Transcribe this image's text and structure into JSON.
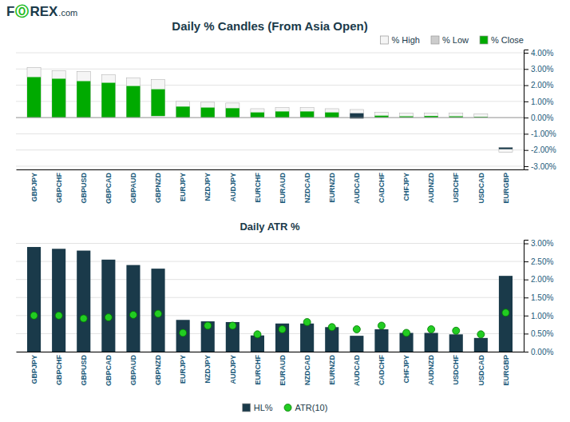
{
  "chart_data": [
    {
      "type": "candlestick",
      "title": "Daily % Candles (From Asia Open)",
      "annotations": [
        {
          "text": "F",
          "color": "#1a3a4a"
        },
        {
          "text": "Ⓞ",
          "color": "#22bb22"
        },
        {
          "text": "REX",
          "color": "#1a3a4a"
        },
        {
          "text": ".com",
          "color": "#1a3a4a"
        }
      ],
      "categories": [
        "GBPJPY",
        "GBPCHF",
        "GBPUSD",
        "GBPCAD",
        "GBPAUD",
        "GBPNZD",
        "EURJPY",
        "NZDJPY",
        "AUDJPY",
        "EURCHF",
        "EURAUD",
        "NZDCAD",
        "EURNZD",
        "AUDCAD",
        "CADCHF",
        "CHFJPY",
        "AUDNZD",
        "USDCHF",
        "USDCAD",
        "EURGBP"
      ],
      "series": [
        {
          "name": "% High",
          "color": "#f5f5f5",
          "values": [
            3.1,
            2.9,
            2.85,
            2.65,
            2.45,
            2.35,
            1.0,
            0.95,
            0.9,
            0.55,
            0.62,
            0.62,
            0.55,
            0.5,
            0.32,
            0.28,
            0.28,
            0.27,
            0.22,
            -1.85
          ]
        },
        {
          "name": "% Low",
          "color": "#cccccc",
          "values": [
            0.02,
            0.02,
            0.02,
            0.02,
            0.02,
            0.1,
            0.02,
            0.02,
            0.02,
            0.02,
            0.02,
            0.02,
            0.02,
            -0.05,
            0.02,
            0.02,
            0.02,
            0.02,
            0.02,
            -2.15
          ]
        },
        {
          "name": "% Close",
          "color": "#00aa00",
          "colors": [
            "#00aa00",
            "#00aa00",
            "#00aa00",
            "#00aa00",
            "#00aa00",
            "#00aa00",
            "#00aa00",
            "#00aa00",
            "#00aa00",
            "#00aa00",
            "#00aa00",
            "#00aa00",
            "#00aa00",
            "#1a3a4a",
            "#00aa00",
            "#00aa00",
            "#00aa00",
            "#00aa00",
            "#00aa00",
            "#1a3a4a"
          ],
          "values": [
            2.5,
            2.4,
            2.25,
            2.15,
            1.95,
            1.75,
            0.68,
            0.62,
            0.58,
            0.32,
            0.38,
            0.38,
            0.32,
            0.27,
            0.12,
            0.08,
            0.1,
            0.08,
            0.05,
            -1.95
          ]
        }
      ],
      "ylim": [
        -3.2,
        4.2
      ],
      "yticks": [
        {
          "value": -3.0,
          "label": "-3.00%"
        },
        {
          "value": -2.0,
          "label": "-2.00%"
        },
        {
          "value": -1.0,
          "label": "-1.00%"
        },
        {
          "value": 0.0,
          "label": "0.00%"
        },
        {
          "value": 1.0,
          "label": "1.00%"
        },
        {
          "value": 2.0,
          "label": "2.00%"
        },
        {
          "value": 3.0,
          "label": "3.00%"
        },
        {
          "value": 4.0,
          "label": "4.00%"
        }
      ],
      "grid": true,
      "legend": "upper right"
    },
    {
      "type": "bar",
      "title": "Daily ATR %",
      "categories": [
        "GBPJPY",
        "GBPCHF",
        "GBPUSD",
        "GBPCAD",
        "GBPAUD",
        "GBPNZD",
        "EURJPY",
        "NZDJPY",
        "AUDJPY",
        "EURCHF",
        "EURAUD",
        "NZDCAD",
        "EURNZD",
        "AUDCAD",
        "CADCHF",
        "CHFJPY",
        "AUDNZD",
        "USDCHF",
        "USDCAD",
        "EURGBP"
      ],
      "series": [
        {
          "name": "HL%",
          "type": "bar",
          "color": "#1a3a4a",
          "values": [
            2.9,
            2.85,
            2.8,
            2.55,
            2.4,
            2.3,
            0.88,
            0.84,
            0.82,
            0.45,
            0.78,
            0.78,
            0.68,
            0.44,
            0.62,
            0.52,
            0.52,
            0.48,
            0.38,
            2.1
          ]
        },
        {
          "name": "ATR(10)",
          "type": "scatter",
          "marker": "circle",
          "color": "#22cc22",
          "values": [
            1.0,
            1.0,
            0.92,
            0.95,
            1.02,
            1.05,
            0.52,
            0.72,
            0.72,
            0.48,
            0.62,
            0.82,
            0.68,
            0.62,
            0.72,
            0.52,
            0.62,
            0.58,
            0.48,
            1.08
          ]
        }
      ],
      "ylim": [
        0.0,
        3.1
      ],
      "yticks": [
        {
          "value": 0.0,
          "label": "0.00%"
        },
        {
          "value": 0.5,
          "label": "0.50%"
        },
        {
          "value": 1.0,
          "label": "1.00%"
        },
        {
          "value": 1.5,
          "label": "1.50%"
        },
        {
          "value": 2.0,
          "label": "2.00%"
        },
        {
          "value": 2.5,
          "label": "2.50%"
        },
        {
          "value": 3.0,
          "label": "3.00%"
        }
      ],
      "grid": true,
      "legend": "lower center"
    }
  ]
}
